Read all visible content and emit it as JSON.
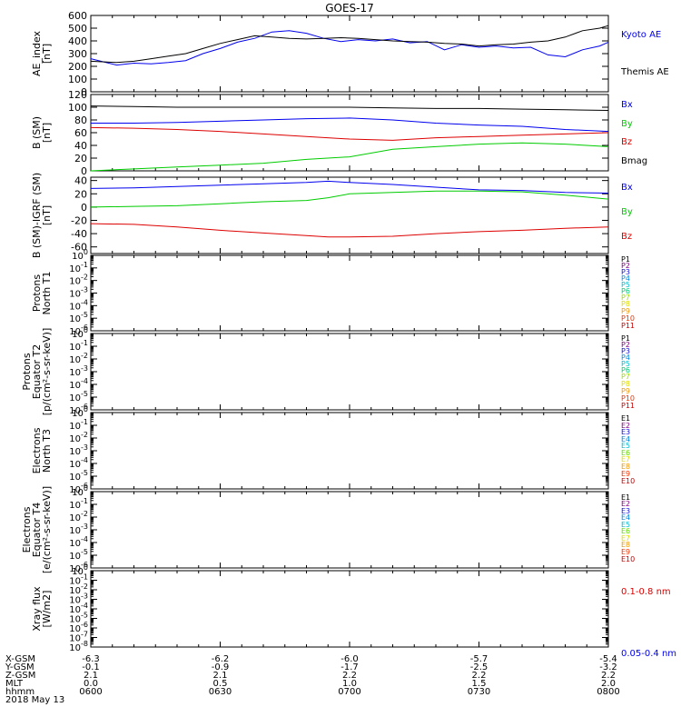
{
  "title": "GOES-17",
  "x_range": [
    "0600",
    "0800"
  ],
  "bottom": {
    "rows": [
      "X-GSM",
      "Y-GSM",
      "Z-GSM",
      "MLT",
      "hhmm"
    ],
    "columns": [
      [
        "-6.3",
        "-0.1",
        "2.1",
        "0.0",
        "0600"
      ],
      [
        "-6.2",
        "-0.9",
        "2.1",
        "0.5",
        "0630"
      ],
      [
        "-6.0",
        "-1.7",
        "2.2",
        "1.0",
        "0700"
      ],
      [
        "-5.7",
        "-2.5",
        "2.2",
        "1.5",
        "0730"
      ],
      [
        "-5.4",
        "-3.2",
        "2.2",
        "2.0",
        "0800"
      ]
    ],
    "date": "2018 May 13"
  },
  "colors": {
    "blue": "#0000ee",
    "red": "#dd0000",
    "green": "#00cc00",
    "black": "#000000"
  },
  "chart_data": [
    {
      "type": "line",
      "ylabel": [
        "AE_index",
        "[nT]"
      ],
      "ylim": [
        0,
        600
      ],
      "ticks": [
        "0",
        "100",
        "200",
        "300",
        "400",
        "500",
        "600"
      ],
      "tick_values": [
        0,
        100,
        200,
        300,
        400,
        500,
        600
      ],
      "x": [
        0,
        6,
        10,
        14,
        18,
        22,
        26,
        30,
        34,
        38,
        42,
        46,
        50,
        54,
        58,
        62,
        66,
        70,
        74,
        78,
        82,
        86,
        90,
        94,
        98,
        102,
        106,
        110,
        114,
        118,
        120
      ],
      "series": [
        {
          "name": "Kyoto AE",
          "color": "#0000ee",
          "values": [
            260,
            210,
            225,
            220,
            230,
            245,
            300,
            340,
            390,
            420,
            470,
            480,
            460,
            420,
            395,
            410,
            400,
            415,
            385,
            395,
            330,
            370,
            350,
            360,
            345,
            350,
            290,
            275,
            330,
            360,
            390
          ]
        },
        {
          "name": "Themis AE",
          "color": "#000000",
          "values": [
            240,
            230,
            240,
            260,
            280,
            300,
            340,
            380,
            410,
            440,
            430,
            420,
            415,
            420,
            425,
            420,
            410,
            400,
            395,
            390,
            380,
            375,
            360,
            370,
            375,
            390,
            400,
            430,
            480,
            500,
            520
          ]
        }
      ],
      "labels": [
        {
          "text": "Kyoto AE",
          "color": "#0000ee"
        },
        {
          "text": "Themis AE",
          "color": "#000000"
        }
      ]
    },
    {
      "type": "line",
      "ylabel": [
        "B (SM)",
        "[nT]"
      ],
      "ylim": [
        0,
        120
      ],
      "ticks": [
        "0",
        "20",
        "40",
        "60",
        "80",
        "100",
        "120"
      ],
      "tick_values": [
        0,
        20,
        40,
        60,
        80,
        100,
        120
      ],
      "x": [
        0,
        10,
        20,
        30,
        40,
        50,
        60,
        70,
        80,
        90,
        100,
        110,
        120
      ],
      "series": [
        {
          "name": "Bx",
          "color": "#0000ee",
          "values": [
            75,
            75,
            76,
            78,
            80,
            82,
            83,
            80,
            75,
            72,
            70,
            65,
            62
          ]
        },
        {
          "name": "By",
          "color": "#00cc00",
          "values": [
            0,
            3,
            6,
            9,
            12,
            18,
            22,
            34,
            38,
            42,
            44,
            42,
            38
          ]
        },
        {
          "name": "Bz",
          "color": "#dd0000",
          "values": [
            68,
            67,
            65,
            62,
            58,
            54,
            50,
            48,
            52,
            54,
            56,
            58,
            60
          ]
        },
        {
          "name": "Bmag",
          "color": "#000000",
          "values": [
            102,
            101,
            100,
            100,
            100,
            100,
            100,
            99,
            98,
            98,
            97,
            96,
            95
          ]
        }
      ],
      "labels": [
        {
          "text": "Bx",
          "color": "#0000ee"
        },
        {
          "text": "By",
          "color": "#00cc00"
        },
        {
          "text": "Bz",
          "color": "#dd0000"
        },
        {
          "text": "Bmag",
          "color": "#000000"
        }
      ]
    },
    {
      "type": "line",
      "ylabel": [
        "B (SM)-IGRF (SM)",
        "[nT]"
      ],
      "ylim": [
        -70,
        45
      ],
      "ticks": [
        "-60",
        "-40",
        "-20",
        "0",
        "20",
        "40"
      ],
      "tick_values": [
        -60,
        -40,
        -20,
        0,
        20,
        40
      ],
      "x": [
        0,
        10,
        20,
        30,
        40,
        50,
        55,
        60,
        70,
        80,
        90,
        100,
        110,
        120
      ],
      "series": [
        {
          "name": "Bx",
          "color": "#0000ee",
          "values": [
            28,
            29,
            31,
            33,
            35,
            37,
            39,
            37,
            34,
            30,
            26,
            25,
            22,
            21
          ]
        },
        {
          "name": "By",
          "color": "#00cc00",
          "values": [
            0,
            1,
            2,
            5,
            8,
            10,
            14,
            20,
            22,
            24,
            24,
            23,
            18,
            12
          ]
        },
        {
          "name": "Bz",
          "color": "#dd0000",
          "values": [
            -25,
            -26,
            -30,
            -35,
            -39,
            -43,
            -45,
            -45,
            -44,
            -40,
            -37,
            -35,
            -32,
            -30
          ]
        }
      ],
      "labels": [
        {
          "text": "Bx",
          "color": "#0000ee"
        },
        {
          "text": "By",
          "color": "#00cc00"
        },
        {
          "text": "Bz",
          "color": "#dd0000"
        }
      ]
    },
    {
      "type": "line",
      "ylabel": [
        "Protons",
        "North T1"
      ],
      "log_scale": true,
      "ylim_exp": [
        -6,
        0
      ],
      "series": [],
      "labels": [
        {
          "text": "P1",
          "color": "#000000"
        },
        {
          "text": "P2",
          "color": "#7f007f"
        },
        {
          "text": "P3",
          "color": "#1010dd"
        },
        {
          "text": "P4",
          "color": "#0088dd"
        },
        {
          "text": "P5",
          "color": "#00bbcc"
        },
        {
          "text": "P6",
          "color": "#00cc77"
        },
        {
          "text": "P7",
          "color": "#99dd00"
        },
        {
          "text": "P8",
          "color": "#dddd00"
        },
        {
          "text": "P9",
          "color": "#ee9900"
        },
        {
          "text": "P10",
          "color": "#ee3300"
        },
        {
          "text": "P11",
          "color": "#cc0000"
        }
      ]
    },
    {
      "type": "line",
      "ylabel": [
        "Protons",
        "Equator T2",
        "[p/(cm²-s-sr-keV)]"
      ],
      "log_scale": true,
      "ylim_exp": [
        -6,
        0
      ],
      "series": [],
      "labels": [
        {
          "text": "P1",
          "color": "#000000"
        },
        {
          "text": "P2",
          "color": "#7f007f"
        },
        {
          "text": "P3",
          "color": "#1010dd"
        },
        {
          "text": "P4",
          "color": "#0088dd"
        },
        {
          "text": "P5",
          "color": "#00bbcc"
        },
        {
          "text": "P6",
          "color": "#00cc77"
        },
        {
          "text": "P7",
          "color": "#99dd00"
        },
        {
          "text": "P8",
          "color": "#dddd00"
        },
        {
          "text": "P9",
          "color": "#ee9900"
        },
        {
          "text": "P10",
          "color": "#ee3300"
        },
        {
          "text": "P11",
          "color": "#cc0000"
        }
      ]
    },
    {
      "type": "line",
      "ylabel": [
        "Electrons",
        "North T3"
      ],
      "log_scale": true,
      "ylim_exp": [
        -6,
        0
      ],
      "series": [],
      "labels": [
        {
          "text": "E1",
          "color": "#000000"
        },
        {
          "text": "E2",
          "color": "#7f007f"
        },
        {
          "text": "E3",
          "color": "#1010dd"
        },
        {
          "text": "E4",
          "color": "#0088dd"
        },
        {
          "text": "E5",
          "color": "#00bbcc"
        },
        {
          "text": "E6",
          "color": "#66dd00"
        },
        {
          "text": "E7",
          "color": "#dddd00"
        },
        {
          "text": "E8",
          "color": "#ee9900"
        },
        {
          "text": "E9",
          "color": "#ee3300"
        },
        {
          "text": "E10",
          "color": "#cc0000"
        }
      ]
    },
    {
      "type": "line",
      "ylabel": [
        "Electrons",
        "Equator T4",
        "[e/(cm²-s-sr-keV)]"
      ],
      "log_scale": true,
      "ylim_exp": [
        -6,
        0
      ],
      "series": [],
      "labels": [
        {
          "text": "E1",
          "color": "#000000"
        },
        {
          "text": "E2",
          "color": "#7f007f"
        },
        {
          "text": "E3",
          "color": "#1010dd"
        },
        {
          "text": "E4",
          "color": "#0088dd"
        },
        {
          "text": "E5",
          "color": "#00bbcc"
        },
        {
          "text": "E6",
          "color": "#66dd00"
        },
        {
          "text": "E7",
          "color": "#dddd00"
        },
        {
          "text": "E8",
          "color": "#ee9900"
        },
        {
          "text": "E9",
          "color": "#ee3300"
        },
        {
          "text": "E10",
          "color": "#cc0000"
        }
      ]
    },
    {
      "type": "line",
      "ylabel": [
        "Xray flux",
        "[W/m2]"
      ],
      "log_scale": true,
      "ylim_exp": [
        -8,
        0
      ],
      "series": [],
      "labels": [
        {
          "text": "0.1-0.8 nm",
          "color": "#dd0000"
        },
        {
          "text": "0.05-0.4 nm",
          "color": "#0000ee"
        }
      ]
    }
  ]
}
